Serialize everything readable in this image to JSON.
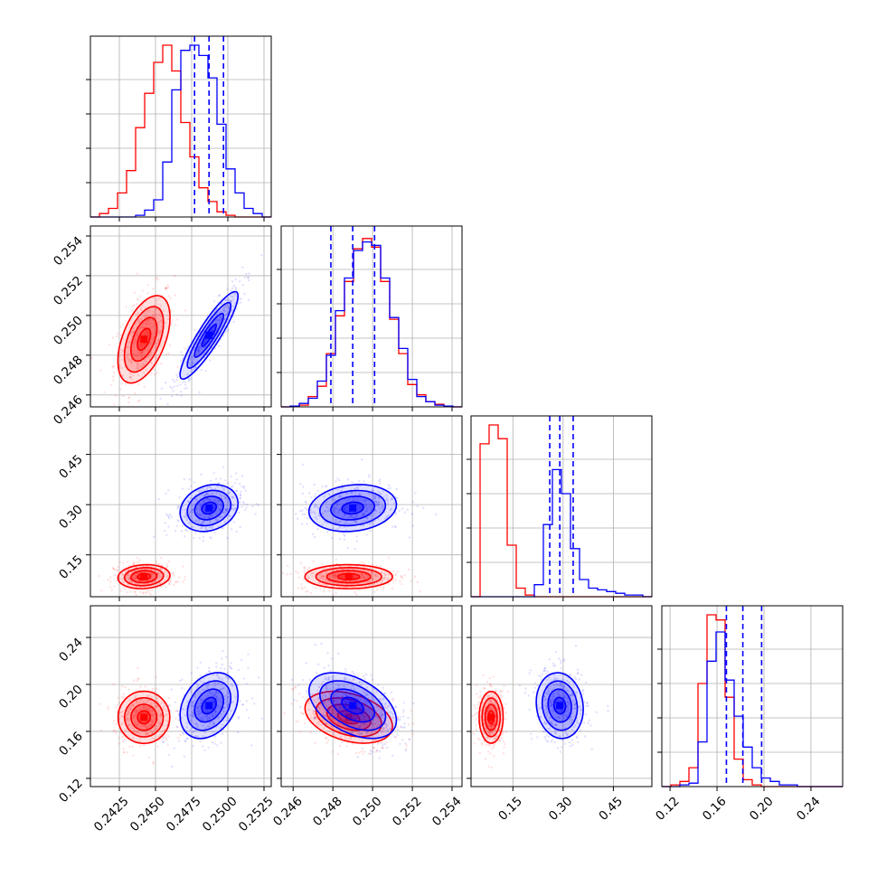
{
  "chart_data": {
    "type": "corner",
    "grid": true,
    "colors": {
      "red": "#ff0000",
      "blue": "#0000ff"
    },
    "parameters": [
      {
        "range": [
          0.2405,
          0.253
        ],
        "ticks": [
          "0.2425",
          "0.2450",
          "0.2475",
          "0.2500",
          "0.2525"
        ],
        "tick_values": [
          0.2425,
          0.245,
          0.2475,
          0.25,
          0.2525
        ]
      },
      {
        "range": [
          0.2454,
          0.2545
        ],
        "ticks": [
          "0.246",
          "0.248",
          "0.250",
          "0.252",
          "0.254"
        ],
        "tick_values": [
          0.246,
          0.248,
          0.25,
          0.252,
          0.254
        ]
      },
      {
        "range": [
          0.025,
          0.565
        ],
        "ticks": [
          "0.15",
          "0.30",
          "0.45"
        ],
        "tick_values": [
          0.15,
          0.3,
          0.45
        ]
      },
      {
        "range": [
          0.113,
          0.267
        ],
        "ticks": [
          "0.12",
          "0.16",
          "0.20",
          "0.24"
        ],
        "tick_values": [
          0.12,
          0.16,
          0.2,
          0.24
        ]
      }
    ],
    "diag_quantiles": [
      [
        0.2477,
        0.2487,
        0.2497
      ],
      [
        0.2479,
        0.249,
        0.2501
      ],
      [
        0.26,
        0.29,
        0.33
      ],
      [
        0.168,
        0.182,
        0.198
      ]
    ],
    "series": [
      {
        "color": "red",
        "means": [
          0.2442,
          0.2488,
          0.085,
          0.172
        ],
        "sds": [
          0.0009,
          0.0011,
          0.018,
          0.011
        ],
        "corr": [
          [
            1,
            0.5,
            0.1,
            0
          ],
          [
            0.5,
            1,
            0,
            -0.35
          ],
          [
            0.1,
            0,
            1,
            0
          ],
          [
            0,
            -0.35,
            0,
            1
          ]
        ],
        "hists": [
          [
            0,
            0.02,
            0.05,
            0.14,
            0.27,
            0.52,
            0.72,
            0.9,
            1.0,
            0.85,
            0.55,
            0.35,
            0.17,
            0.09,
            0.03,
            0.01,
            0,
            0,
            0,
            0
          ],
          [
            0,
            0.005,
            0.01,
            0.06,
            0.12,
            0.31,
            0.53,
            0.73,
            0.92,
            0.98,
            0.93,
            0.73,
            0.51,
            0.31,
            0.13,
            0.07,
            0.03,
            0.015,
            0.005,
            0
          ],
          [
            0,
            0.89,
            1.0,
            0.92,
            0.3,
            0.05,
            0.01,
            0,
            0,
            0,
            0,
            0,
            0,
            0,
            0,
            0,
            0,
            0,
            0,
            0
          ],
          [
            0,
            0.01,
            0.03,
            0.11,
            0.6,
            1.0,
            0.97,
            0.52,
            0.16,
            0.04,
            0.01,
            0,
            0,
            0,
            0,
            0,
            0,
            0,
            0,
            0
          ]
        ]
      },
      {
        "color": "blue",
        "means": [
          0.2487,
          0.249,
          0.29,
          0.182
        ],
        "sds": [
          0.001,
          0.0011,
          0.035,
          0.014
        ],
        "corr": [
          [
            1,
            0.9,
            0.2,
            0.3
          ],
          [
            0.9,
            1,
            0.15,
            -0.45
          ],
          [
            0.2,
            0.15,
            1,
            -0.1
          ],
          [
            0.3,
            -0.45,
            -0.1,
            1
          ]
        ],
        "hists": [
          [
            0,
            0,
            0,
            0,
            0,
            0.01,
            0.04,
            0.1,
            0.32,
            0.74,
            0.97,
            1.0,
            0.94,
            0.81,
            0.54,
            0.28,
            0.14,
            0.05,
            0.02,
            0
          ],
          [
            0,
            0.005,
            0.02,
            0.05,
            0.15,
            0.3,
            0.56,
            0.75,
            0.91,
            0.96,
            0.94,
            0.75,
            0.52,
            0.34,
            0.16,
            0.06,
            0.03,
            0.01,
            0.005,
            0
          ],
          [
            0,
            0,
            0,
            0,
            0,
            0,
            0,
            0.07,
            0.42,
            0.74,
            0.6,
            0.28,
            0.1,
            0.05,
            0.04,
            0.03,
            0.02,
            0.01,
            0.01,
            0
          ],
          [
            0,
            0,
            0.01,
            0.02,
            0.26,
            0.73,
            0.9,
            0.62,
            0.41,
            0.23,
            0.11,
            0.05,
            0.03,
            0.01,
            0.01,
            0,
            0,
            0,
            0,
            0
          ]
        ]
      }
    ]
  }
}
